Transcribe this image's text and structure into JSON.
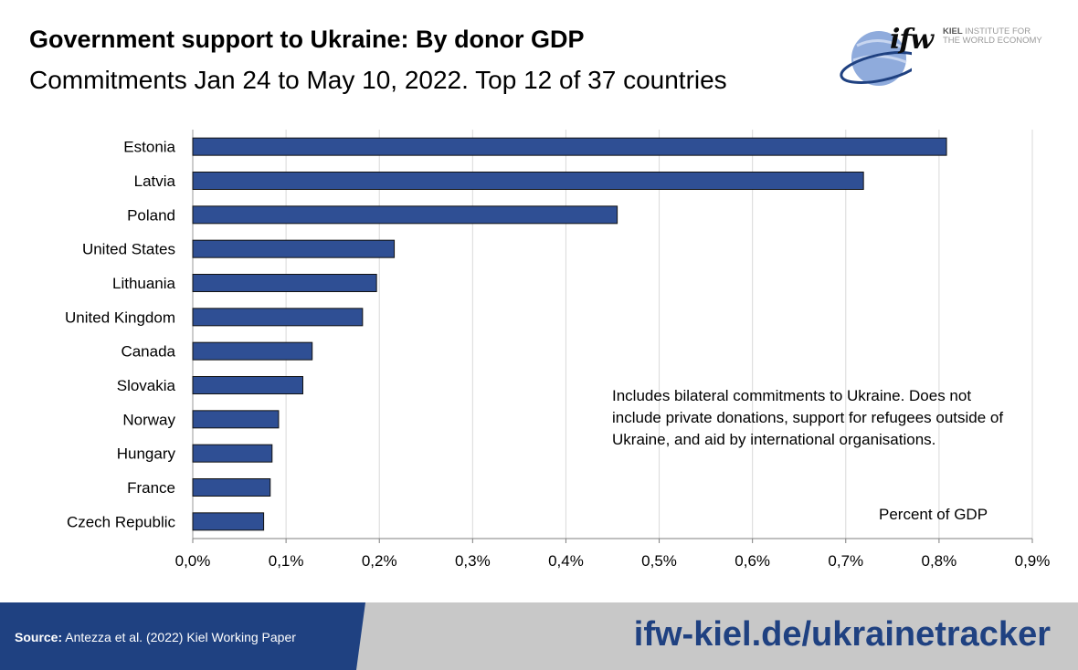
{
  "header": {
    "title": "Government support to Ukraine: By donor GDP",
    "subtitle": "Commitments Jan 24 to May 10, 2022. Top 12 of 37 countries"
  },
  "logo": {
    "mark": "ifw",
    "line1_bold": "KIEL",
    "line1": "INSTITUTE FOR",
    "line2": "THE WORLD ECONOMY"
  },
  "chart_data": {
    "type": "bar",
    "orientation": "horizontal",
    "categories": [
      "Estonia",
      "Latvia",
      "Poland",
      "United States",
      "Lithuania",
      "United Kingdom",
      "Canada",
      "Slovakia",
      "Norway",
      "Hungary",
      "France",
      "Czech Republic"
    ],
    "values": [
      0.808,
      0.719,
      0.455,
      0.216,
      0.197,
      0.182,
      0.128,
      0.118,
      0.092,
      0.085,
      0.083,
      0.076
    ],
    "xlim": [
      0,
      0.9
    ],
    "xticks": [
      "0,0%",
      "0,1%",
      "0,2%",
      "0,3%",
      "0,4%",
      "0,5%",
      "0,6%",
      "0,7%",
      "0,8%",
      "0,9%"
    ],
    "grid": "vertical",
    "bar_color": "#2f4f94",
    "unit_label": "Percent of GDP",
    "annotation": "Includes bilateral commitments to Ukraine. Does not include private donations, support for refugees outside of Ukraine, and aid by international organisations."
  },
  "footer": {
    "source_label": "Source:",
    "source_text": " Antezza et al. (2022) Kiel Working Paper",
    "url": "ifw-kiel.de/ukrainetracker"
  },
  "colors": {
    "accent": "#1f4181",
    "footer_gray": "#c8c8c8",
    "bar": "#2f4f94"
  }
}
